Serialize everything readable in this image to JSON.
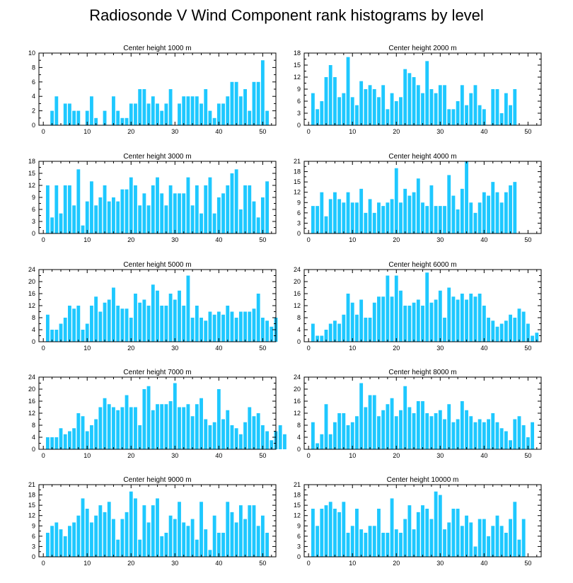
{
  "title": "Radiosonde V Wind Component rank histograms by level",
  "colors": {
    "bar": "#1ec8ff",
    "axis": "#000000",
    "background": "#ffffff"
  },
  "chart_data": [
    {
      "type": "bar",
      "title": "Center height 1000 m",
      "xlim": [
        -1,
        53
      ],
      "ylim": [
        0,
        10
      ],
      "xticks": [
        0,
        10,
        20,
        30,
        40,
        50
      ],
      "yticks": [
        0,
        2,
        4,
        6,
        8,
        10
      ],
      "values": [
        0,
        2,
        4,
        0,
        3,
        3,
        2,
        2,
        0,
        2,
        4,
        1,
        0,
        2,
        0,
        4,
        2,
        1,
        1,
        3,
        3,
        5,
        5,
        3,
        4,
        3,
        2,
        3,
        5,
        0,
        3,
        4,
        4,
        4,
        4,
        3,
        5,
        2,
        1,
        3,
        3,
        4,
        6,
        6,
        4,
        5,
        2,
        6,
        6,
        9,
        2
      ]
    },
    {
      "type": "bar",
      "title": "Center height 2000 m",
      "xlim": [
        -1,
        53
      ],
      "ylim": [
        0,
        18
      ],
      "xticks": [
        0,
        10,
        20,
        30,
        40,
        50
      ],
      "yticks": [
        0,
        3,
        6,
        9,
        12,
        15,
        18
      ],
      "values": [
        8,
        4,
        6,
        12,
        15,
        12,
        7,
        8,
        17,
        7,
        5,
        11,
        9,
        10,
        9,
        7,
        10,
        4,
        8,
        6,
        7,
        14,
        13,
        12,
        10,
        8,
        16,
        9,
        8,
        10,
        10,
        4,
        4,
        6,
        10,
        5,
        8,
        10,
        5,
        4,
        0,
        9,
        9,
        3,
        8,
        5,
        9
      ]
    },
    {
      "type": "bar",
      "title": "Center height 3000 m",
      "xlim": [
        -1,
        53
      ],
      "ylim": [
        0,
        18
      ],
      "xticks": [
        0,
        10,
        20,
        30,
        40,
        50
      ],
      "yticks": [
        0,
        3,
        6,
        9,
        12,
        15,
        18
      ],
      "values": [
        12,
        4,
        12,
        5,
        12,
        12,
        7,
        16,
        2,
        8,
        13,
        7,
        9,
        12,
        8,
        9,
        8,
        11,
        11,
        14,
        12,
        7,
        10,
        7,
        12,
        14,
        10,
        7,
        12,
        10,
        10,
        10,
        14,
        7,
        12,
        5,
        12,
        14,
        5,
        9,
        10,
        12,
        15,
        16,
        6,
        12,
        12,
        8,
        4,
        9,
        13
      ]
    },
    {
      "type": "bar",
      "title": "Center height 4000 m",
      "xlim": [
        -1,
        53
      ],
      "ylim": [
        0,
        21
      ],
      "xticks": [
        0,
        10,
        20,
        30,
        40,
        50
      ],
      "yticks": [
        0,
        3,
        6,
        9,
        12,
        15,
        18,
        21
      ],
      "values": [
        8,
        8,
        12,
        5,
        10,
        12,
        10,
        9,
        12,
        9,
        9,
        13,
        6,
        10,
        6,
        9,
        8,
        9,
        10,
        19,
        9,
        13,
        11,
        12,
        16,
        9,
        8,
        14,
        8,
        8,
        8,
        17,
        11,
        7,
        13,
        21,
        9,
        6,
        9,
        12,
        11,
        15,
        12,
        9,
        12,
        14,
        15
      ]
    },
    {
      "type": "bar",
      "title": "Center height 5000 m",
      "xlim": [
        -1,
        53
      ],
      "ylim": [
        0,
        24
      ],
      "xticks": [
        0,
        10,
        20,
        30,
        40,
        50
      ],
      "yticks": [
        0,
        4,
        8,
        12,
        16,
        20,
        24
      ],
      "values": [
        9,
        4,
        4,
        6,
        8,
        12,
        11,
        12,
        4,
        6,
        12,
        15,
        10,
        13,
        14,
        18,
        12,
        11,
        11,
        8,
        16,
        13,
        14,
        12,
        19,
        17,
        12,
        12,
        16,
        14,
        17,
        12,
        22,
        8,
        12,
        8,
        7,
        10,
        9,
        10,
        9,
        12,
        10,
        8,
        10,
        10,
        10,
        11,
        16,
        8,
        7,
        5,
        8
      ]
    },
    {
      "type": "bar",
      "title": "Center height 6000 m",
      "xlim": [
        -1,
        53
      ],
      "ylim": [
        0,
        24
      ],
      "xticks": [
        0,
        10,
        20,
        30,
        40,
        50
      ],
      "yticks": [
        0,
        4,
        8,
        12,
        16,
        20,
        24
      ],
      "values": [
        6,
        2,
        2,
        4,
        6,
        7,
        6,
        9,
        16,
        13,
        9,
        14,
        8,
        8,
        13,
        15,
        15,
        22,
        15,
        22,
        17,
        12,
        12,
        13,
        14,
        12,
        23,
        13,
        14,
        17,
        8,
        18,
        15,
        14,
        16,
        14,
        16,
        15,
        16,
        12,
        8,
        7,
        5,
        6,
        7,
        9,
        8,
        11,
        10,
        6,
        2,
        3
      ]
    },
    {
      "type": "bar",
      "title": "Center height 7000 m",
      "xlim": [
        -1,
        53
      ],
      "ylim": [
        0,
        24
      ],
      "xticks": [
        0,
        10,
        20,
        30,
        40,
        50
      ],
      "yticks": [
        0,
        4,
        8,
        12,
        16,
        20,
        24
      ],
      "values": [
        4,
        4,
        4,
        7,
        5,
        6,
        7,
        12,
        11,
        6,
        8,
        10,
        14,
        17,
        15,
        14,
        13,
        14,
        18,
        14,
        14,
        8,
        20,
        21,
        13,
        15,
        15,
        15,
        16,
        22,
        14,
        14,
        15,
        11,
        15,
        17,
        10,
        8,
        9,
        20,
        10,
        13,
        8,
        7,
        5,
        9,
        14,
        11,
        12,
        8,
        6,
        3,
        6,
        8,
        5
      ]
    },
    {
      "type": "bar",
      "title": "Center height 8000 m",
      "xlim": [
        -1,
        53
      ],
      "ylim": [
        0,
        24
      ],
      "xticks": [
        0,
        10,
        20,
        30,
        40,
        50
      ],
      "yticks": [
        0,
        4,
        8,
        12,
        16,
        20,
        24
      ],
      "values": [
        9,
        2,
        5,
        15,
        5,
        9,
        12,
        12,
        8,
        9,
        11,
        22,
        14,
        18,
        18,
        11,
        13,
        15,
        17,
        11,
        13,
        21,
        14,
        12,
        16,
        16,
        12,
        11,
        12,
        13,
        10,
        15,
        9,
        10,
        16,
        13,
        11,
        9,
        10,
        9,
        10,
        12,
        9,
        7,
        6,
        3,
        10,
        11,
        8,
        4,
        9
      ]
    },
    {
      "type": "bar",
      "title": "Center height 9000 m",
      "xlim": [
        -1,
        53
      ],
      "ylim": [
        0,
        21
      ],
      "xticks": [
        0,
        10,
        20,
        30,
        40,
        50
      ],
      "yticks": [
        0,
        3,
        6,
        9,
        12,
        15,
        18,
        21
      ],
      "values": [
        7,
        9,
        10,
        8,
        6,
        9,
        10,
        12,
        17,
        14,
        10,
        12,
        15,
        13,
        16,
        11,
        5,
        11,
        13,
        19,
        17,
        5,
        15,
        10,
        15,
        17,
        6,
        7,
        12,
        11,
        16,
        10,
        9,
        11,
        5,
        16,
        8,
        2,
        12,
        7,
        7,
        16,
        13,
        10,
        15,
        11,
        15,
        15,
        9,
        12,
        7
      ]
    },
    {
      "type": "bar",
      "title": "Center height 10000 m",
      "xlim": [
        -1,
        53
      ],
      "ylim": [
        0,
        21
      ],
      "xticks": [
        0,
        10,
        20,
        30,
        40,
        50
      ],
      "yticks": [
        0,
        3,
        6,
        9,
        12,
        15,
        18,
        21
      ],
      "values": [
        14,
        9,
        14,
        15,
        16,
        14,
        13,
        16,
        7,
        9,
        14,
        8,
        7,
        9,
        9,
        14,
        7,
        7,
        17,
        8,
        7,
        11,
        15,
        8,
        13,
        15,
        14,
        11,
        19,
        18,
        8,
        10,
        14,
        14,
        9,
        12,
        10,
        3,
        11,
        11,
        6,
        9,
        12,
        9,
        7,
        11,
        16,
        5,
        11
      ]
    }
  ]
}
